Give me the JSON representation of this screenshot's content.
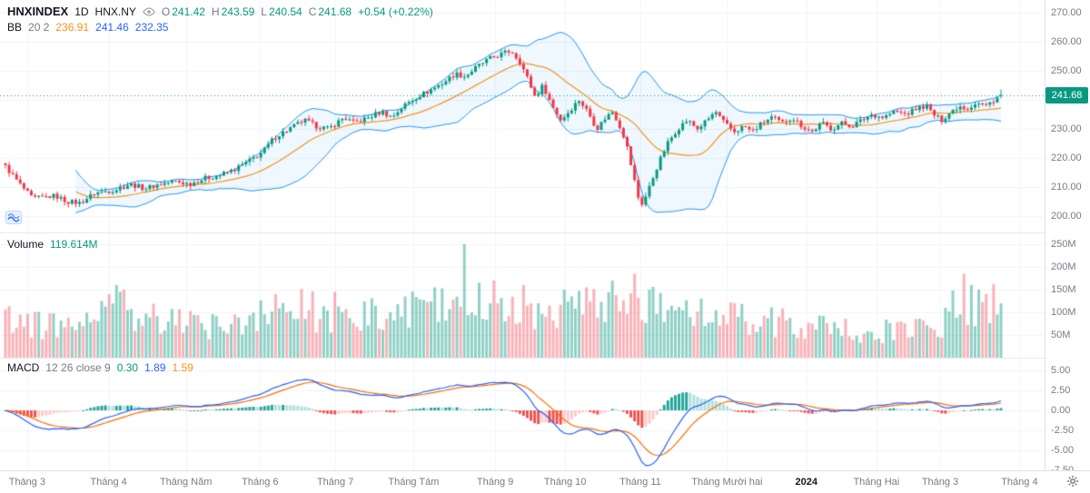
{
  "ui": {
    "header": {
      "symbol": "HNXINDEX",
      "timeframe": "1D",
      "exchange": "HNX.NY",
      "o_label": "O",
      "o": "241.42",
      "h_label": "H",
      "h": "243.59",
      "l_label": "L",
      "l": "240.54",
      "c_label": "C",
      "c": "241.68",
      "change": "+0.54 (+0.22%)"
    },
    "bb_legend": {
      "name": "BB",
      "params": "20 2",
      "basis": "236.91",
      "upper": "241.46",
      "lower": "232.35"
    },
    "volume_legend": {
      "name": "Volume",
      "value": "119.614M"
    },
    "macd_legend": {
      "name": "MACD",
      "params": "12 26 close 9",
      "hist": "0.30",
      "macd": "1.89",
      "signal": "1.59"
    },
    "price_badge": "241.68"
  },
  "colors": {
    "up": "#089981",
    "down": "#f23645",
    "vol_up": "rgba(8,153,129,0.45)",
    "vol_down": "rgba(242,54,69,0.38)",
    "bb_band": "#2196f3",
    "bb_fill": "rgba(33,150,243,0.07)",
    "bb_basis": "#f7931a",
    "macd_line": "#2962ff",
    "macd_signal": "#ff6d00",
    "hist_pos_rise": "#26a69a",
    "hist_pos_fall": "#b2dfdb",
    "hist_neg_fall": "#ef5350",
    "hist_neg_rise": "#fccbcd",
    "grid": "#f0f3fa",
    "axis_text": "#787b86",
    "badge_bg": "#089981",
    "last_price_line": "#089981"
  },
  "chart_data": {
    "type": "candlestick+volume+macd",
    "title": "HNXINDEX 1D HNX.NY",
    "n_bars": 270,
    "last_candle": {
      "o": 241.42,
      "h": 243.59,
      "l": 240.54,
      "c": 241.68
    },
    "last_volume": 119.614,
    "price_axis_range": [
      197,
      272
    ],
    "price_ticks": [
      {
        "v": 270,
        "label": "270.00"
      },
      {
        "v": 260,
        "label": "260.00"
      },
      {
        "v": 250,
        "label": "250.00"
      },
      {
        "v": 240,
        "label": "240.00"
      },
      {
        "v": 230,
        "label": "230.00"
      },
      {
        "v": 220,
        "label": "220.00"
      },
      {
        "v": 210,
        "label": "210.00"
      },
      {
        "v": 200,
        "label": "200.00"
      }
    ],
    "volume_ticks": [
      {
        "v": 250,
        "label": "250M"
      },
      {
        "v": 200,
        "label": "200M"
      },
      {
        "v": 150,
        "label": "150M"
      },
      {
        "v": 100,
        "label": "100M"
      },
      {
        "v": 50,
        "label": "50M"
      }
    ],
    "macd_ticks": [
      {
        "v": 5,
        "label": "5.00"
      },
      {
        "v": 2.5,
        "label": "2.50"
      },
      {
        "v": 0,
        "label": "0.00"
      },
      {
        "v": -2.5,
        "label": "-2.50"
      },
      {
        "v": -5,
        "label": "-5.00"
      },
      {
        "v": -7.5,
        "label": "-7.50"
      }
    ],
    "time_ticks": [
      {
        "pos": 0.026,
        "label": "Tháng 3",
        "year": false
      },
      {
        "pos": 0.104,
        "label": "Tháng 4",
        "year": false
      },
      {
        "pos": 0.178,
        "label": "Tháng Năm",
        "year": false
      },
      {
        "pos": 0.249,
        "label": "Tháng 6",
        "year": false
      },
      {
        "pos": 0.321,
        "label": "Tháng 7",
        "year": false
      },
      {
        "pos": 0.396,
        "label": "Tháng Tám",
        "year": false
      },
      {
        "pos": 0.474,
        "label": "Tháng 9",
        "year": false
      },
      {
        "pos": 0.541,
        "label": "Tháng 10",
        "year": false
      },
      {
        "pos": 0.613,
        "label": "Tháng 11",
        "year": false
      },
      {
        "pos": 0.696,
        "label": "Tháng Mười hai",
        "year": false
      },
      {
        "pos": 0.772,
        "label": "2024",
        "year": true
      },
      {
        "pos": 0.839,
        "label": "Tháng Hai",
        "year": false
      },
      {
        "pos": 0.9,
        "label": "Tháng 3",
        "year": false
      },
      {
        "pos": 0.976,
        "label": "Tháng 4",
        "year": false
      }
    ],
    "bb_params": {
      "period": 20,
      "mult": 2
    },
    "macd_params": {
      "fast": 12,
      "slow": 26,
      "signal": 9
    },
    "price_anchors": [
      [
        0,
        217
      ],
      [
        0.012,
        212
      ],
      [
        0.027,
        206
      ],
      [
        0.05,
        207
      ],
      [
        0.062,
        205
      ],
      [
        0.075,
        204.5
      ],
      [
        0.09,
        208
      ],
      [
        0.11,
        209
      ],
      [
        0.125,
        211
      ],
      [
        0.14,
        209.5
      ],
      [
        0.155,
        211
      ],
      [
        0.17,
        212
      ],
      [
        0.185,
        211
      ],
      [
        0.2,
        213
      ],
      [
        0.215,
        214
      ],
      [
        0.23,
        216
      ],
      [
        0.245,
        219
      ],
      [
        0.258,
        222
      ],
      [
        0.27,
        227
      ],
      [
        0.285,
        230
      ],
      [
        0.3,
        233
      ],
      [
        0.312,
        231
      ],
      [
        0.325,
        230
      ],
      [
        0.34,
        234
      ],
      [
        0.35,
        232
      ],
      [
        0.365,
        234
      ],
      [
        0.378,
        236
      ],
      [
        0.388,
        234
      ],
      [
        0.4,
        238
      ],
      [
        0.413,
        241
      ],
      [
        0.425,
        243
      ],
      [
        0.44,
        246
      ],
      [
        0.452,
        249
      ],
      [
        0.462,
        248
      ],
      [
        0.472,
        251
      ],
      [
        0.485,
        254
      ],
      [
        0.5,
        256
      ],
      [
        0.508,
        257
      ],
      [
        0.517,
        253
      ],
      [
        0.525,
        247
      ],
      [
        0.532,
        241
      ],
      [
        0.54,
        245
      ],
      [
        0.549,
        238
      ],
      [
        0.558,
        233
      ],
      [
        0.566,
        236
      ],
      [
        0.576,
        240
      ],
      [
        0.585,
        236
      ],
      [
        0.594,
        230
      ],
      [
        0.603,
        234
      ],
      [
        0.61,
        236
      ],
      [
        0.617,
        231
      ],
      [
        0.623,
        226
      ],
      [
        0.63,
        215
      ],
      [
        0.636,
        206
      ],
      [
        0.64,
        204
      ],
      [
        0.648,
        211
      ],
      [
        0.657,
        219
      ],
      [
        0.665,
        225
      ],
      [
        0.675,
        230
      ],
      [
        0.685,
        233
      ],
      [
        0.695,
        230
      ],
      [
        0.705,
        233
      ],
      [
        0.713,
        236
      ],
      [
        0.722,
        232
      ],
      [
        0.732,
        229
      ],
      [
        0.742,
        231
      ],
      [
        0.75,
        229
      ],
      [
        0.76,
        232
      ],
      [
        0.77,
        234
      ],
      [
        0.78,
        232
      ],
      [
        0.79,
        234
      ],
      [
        0.8,
        231
      ],
      [
        0.81,
        229
      ],
      [
        0.82,
        232
      ],
      [
        0.83,
        230
      ],
      [
        0.84,
        232
      ],
      [
        0.85,
        231
      ],
      [
        0.86,
        233
      ],
      [
        0.87,
        235
      ],
      [
        0.882,
        234
      ],
      [
        0.893,
        236
      ],
      [
        0.905,
        235
      ],
      [
        0.915,
        237
      ],
      [
        0.925,
        238
      ],
      [
        0.932,
        235
      ],
      [
        0.94,
        233
      ],
      [
        0.95,
        236
      ],
      [
        0.958,
        238
      ],
      [
        0.966,
        237
      ],
      [
        0.975,
        239
      ],
      [
        0.985,
        238
      ],
      [
        0.993,
        240
      ],
      [
        1,
        241.68
      ]
    ],
    "volume_base": [
      [
        0,
        95
      ],
      [
        0.03,
        75
      ],
      [
        0.06,
        65
      ],
      [
        0.09,
        90
      ],
      [
        0.11,
        120
      ],
      [
        0.14,
        85
      ],
      [
        0.17,
        75
      ],
      [
        0.2,
        70
      ],
      [
        0.23,
        85
      ],
      [
        0.26,
        100
      ],
      [
        0.3,
        105
      ],
      [
        0.34,
        90
      ],
      [
        0.38,
        95
      ],
      [
        0.42,
        105
      ],
      [
        0.46,
        115
      ],
      [
        0.5,
        110
      ],
      [
        0.55,
        105
      ],
      [
        0.6,
        110
      ],
      [
        0.64,
        120
      ],
      [
        0.68,
        95
      ],
      [
        0.72,
        85
      ],
      [
        0.76,
        80
      ],
      [
        0.8,
        72
      ],
      [
        0.84,
        62
      ],
      [
        0.88,
        58
      ],
      [
        0.92,
        66
      ],
      [
        0.95,
        85
      ],
      [
        0.98,
        110
      ],
      [
        1,
        115
      ]
    ],
    "volume_spikes": [
      [
        0.105,
        140
      ],
      [
        0.112,
        160
      ],
      [
        0.118,
        150
      ],
      [
        0.27,
        140
      ],
      [
        0.33,
        145
      ],
      [
        0.43,
        155
      ],
      [
        0.46,
        250
      ],
      [
        0.475,
        165
      ],
      [
        0.49,
        170
      ],
      [
        0.52,
        160
      ],
      [
        0.56,
        150
      ],
      [
        0.585,
        155
      ],
      [
        0.61,
        170
      ],
      [
        0.633,
        185
      ],
      [
        0.645,
        150
      ],
      [
        0.7,
        130
      ],
      [
        0.953,
        148
      ],
      [
        0.962,
        185
      ],
      [
        0.97,
        160
      ],
      [
        0.978,
        150
      ]
    ]
  }
}
